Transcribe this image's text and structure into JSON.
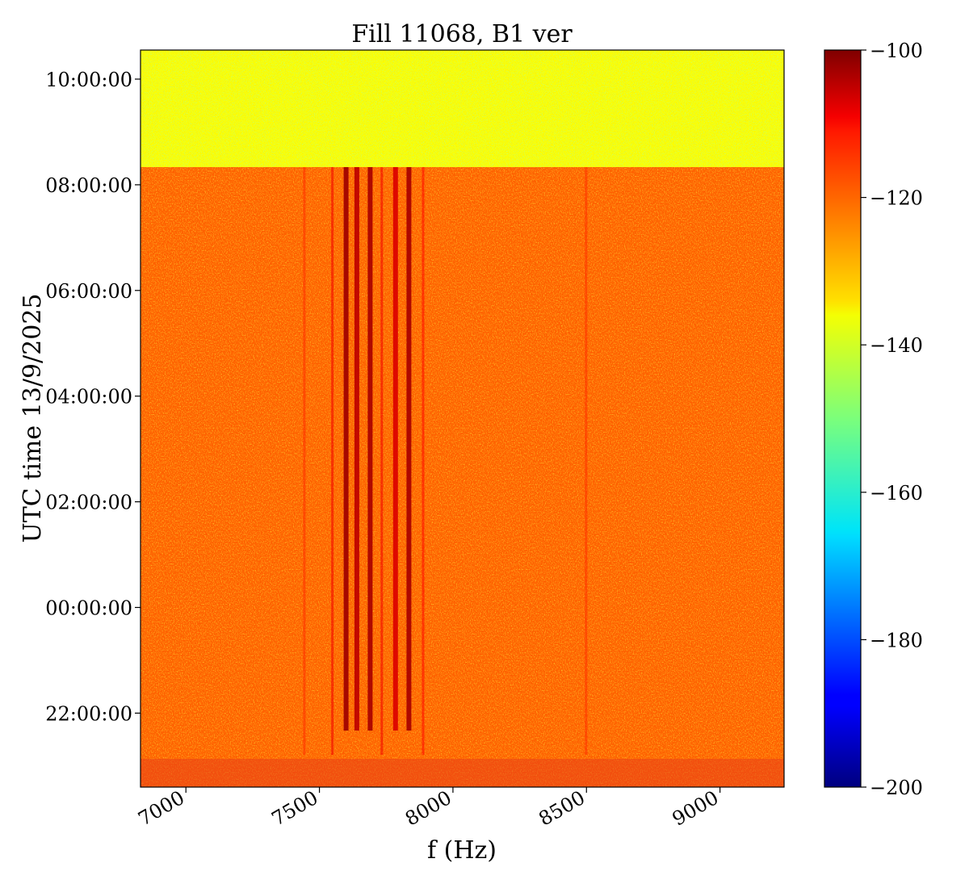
{
  "chart_data": {
    "type": "heatmap",
    "title": "Fill 11068, B1 ver",
    "xlabel": "f (Hz)",
    "ylabel": "UTC time 13/9/2025",
    "xlim": [
      6830,
      9240
    ],
    "ylim_hours_since_midnight": [
      -3.4,
      10.55
    ],
    "x_ticks": [
      7000,
      7500,
      8000,
      8500,
      9000
    ],
    "x_tick_labels": [
      "7000",
      "7500",
      "8000",
      "8500",
      "9000"
    ],
    "y_ticks": [
      -2,
      0,
      2,
      4,
      6,
      8,
      10
    ],
    "y_tick_labels": [
      "22:00:00",
      "00:00:00",
      "02:00:00",
      "04:00:00",
      "06:00:00",
      "08:00:00",
      "10:00:00"
    ],
    "colormap": "jet",
    "colorbar": {
      "range": [
        -200,
        -100
      ],
      "ticks": [
        -100,
        -120,
        -140,
        -160,
        -180,
        -200
      ],
      "tick_labels": [
        "−100",
        "−120",
        "−140",
        "−160",
        "−180",
        "−200"
      ]
    },
    "regions": [
      {
        "name": "background noise before 08:15",
        "value_dB": -122
      },
      {
        "name": "background noise after 08:15",
        "value_dB": -138
      }
    ],
    "lines": [
      {
        "freq_hz": 7445,
        "value_dB": -117
      },
      {
        "freq_hz": 7550,
        "value_dB": -111
      },
      {
        "freq_hz": 7600,
        "value_dB": -103
      },
      {
        "freq_hz": 7640,
        "value_dB": -106
      },
      {
        "freq_hz": 7690,
        "value_dB": -104
      },
      {
        "freq_hz": 7735,
        "value_dB": -111
      },
      {
        "freq_hz": 7785,
        "value_dB": -109
      },
      {
        "freq_hz": 7835,
        "value_dB": -104
      },
      {
        "freq_hz": 7890,
        "value_dB": -113
      },
      {
        "freq_hz": 8500,
        "value_dB": -117
      }
    ]
  }
}
